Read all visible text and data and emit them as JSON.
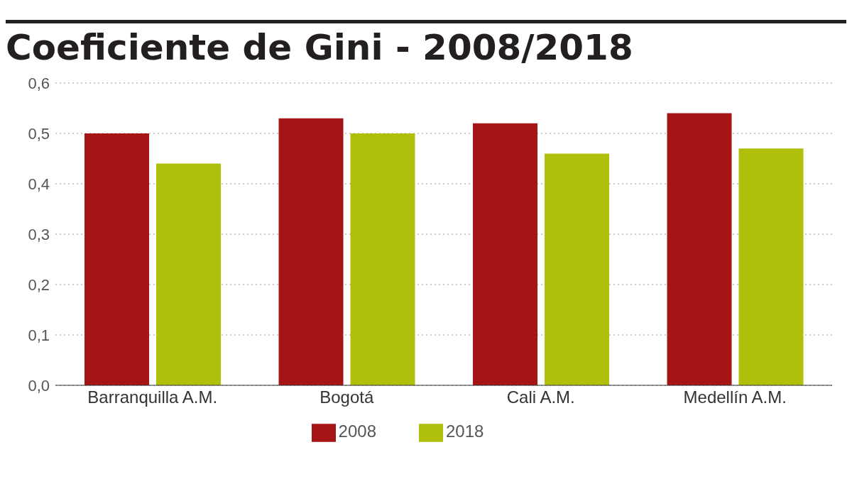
{
  "chart_data": {
    "type": "bar",
    "title": "Coeficiente de Gini - 2008/2018",
    "categories": [
      "Barranquilla A.M.",
      "Bogotá",
      "Cali A.M.",
      "Medellín A.M."
    ],
    "series": [
      {
        "name": "2008",
        "color": "#a51515",
        "values": [
          0.5,
          0.53,
          0.52,
          0.54
        ]
      },
      {
        "name": "2018",
        "color": "#b0bf0a",
        "values": [
          0.44,
          0.5,
          0.46,
          0.47
        ]
      }
    ],
    "ylim": [
      0,
      0.6
    ],
    "yticks": [
      {
        "value": 0,
        "label": "0,0"
      },
      {
        "value": 0.1,
        "label": "0,1"
      },
      {
        "value": 0.2,
        "label": "0,2"
      },
      {
        "value": 0.3,
        "label": "0,3"
      },
      {
        "value": 0.4,
        "label": "0,4"
      },
      {
        "value": 0.5,
        "label": "0,5"
      },
      {
        "value": 0.6,
        "label": "0,6"
      }
    ],
    "grid": "y",
    "legend": "bottom"
  }
}
